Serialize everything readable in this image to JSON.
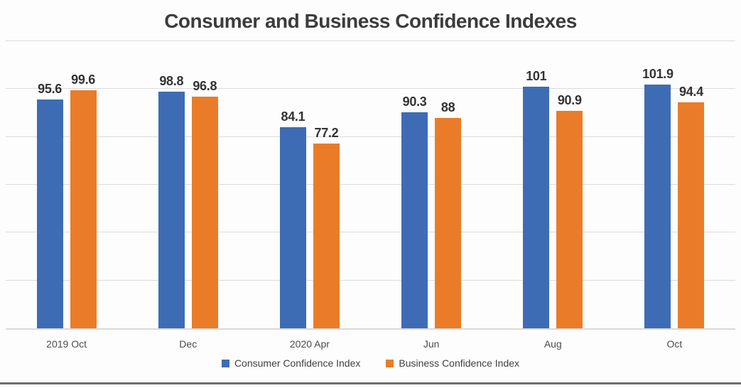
{
  "chart_data": {
    "type": "bar",
    "title": "Consumer and Business Confidence Indexes",
    "categories": [
      "2019 Oct",
      "Dec",
      "2020 Apr",
      "Jun",
      "Aug",
      "Oct"
    ],
    "series": [
      {
        "name": "Consumer Confidence Index",
        "color": "#3E6CB4",
        "values": [
          95.6,
          98.8,
          84.1,
          90.3,
          101,
          101.9
        ]
      },
      {
        "name": "Business Confidence Index",
        "color": "#EA7C29",
        "values": [
          99.6,
          96.8,
          77.2,
          88,
          90.9,
          94.4
        ]
      }
    ],
    "xlabel": "",
    "ylabel": "",
    "ylim": [
      0,
      120
    ],
    "gridline_step": 20,
    "grid": true,
    "y_axis_tick_labels_visible": false,
    "data_labels_visible": true,
    "legend_position": "bottom"
  },
  "colors": {
    "gridline": "#DBDBDB",
    "axis_line": "#D9D9D9",
    "title_text": "#3C3C3C",
    "data_label_text": "#333333",
    "axis_label_text": "#4C4C4C",
    "legend_text": "#404040",
    "bottom_rule": "#6E6E6E",
    "background": "#FDFDFD"
  }
}
